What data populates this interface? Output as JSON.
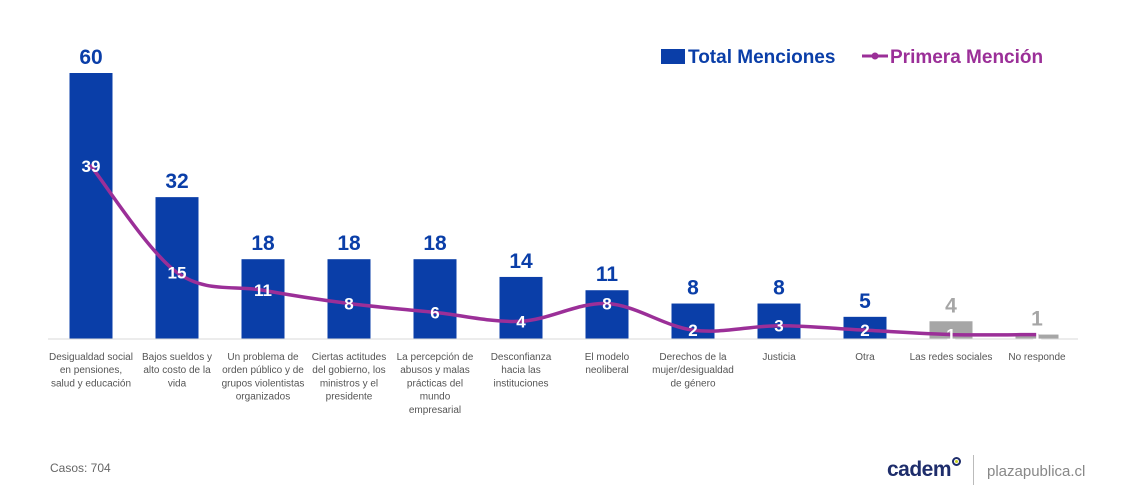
{
  "chart_data": {
    "type": "bar",
    "categories": [
      [
        "Desigualdad social",
        "en pensiones,",
        "salud y educación"
      ],
      [
        "Bajos sueldos y",
        "alto costo de la",
        "vida"
      ],
      [
        "Un problema de",
        "orden público y de",
        "grupos violentistas",
        "organizados"
      ],
      [
        "Ciertas actitudes",
        "del gobierno, los",
        "ministros y el",
        "presidente"
      ],
      [
        "La percepción de",
        "abusos y malas",
        "prácticas del",
        "mundo",
        "empresarial"
      ],
      [
        "Desconfianza",
        "hacia las",
        "instituciones"
      ],
      [
        "El modelo",
        "neoliberal"
      ],
      [
        "Derechos de la",
        "mujer/desigualdad",
        "de género"
      ],
      [
        "Justicia"
      ],
      [
        "Otra"
      ],
      [
        "Las redes sociales"
      ],
      [
        "No responde"
      ]
    ],
    "series": [
      {
        "name": "Total Menciones",
        "type": "bar",
        "values": [
          60,
          32,
          18,
          18,
          18,
          14,
          11,
          8,
          8,
          5,
          4,
          1
        ],
        "colors": [
          "#0a3ea8",
          "#0a3ea8",
          "#0a3ea8",
          "#0a3ea8",
          "#0a3ea8",
          "#0a3ea8",
          "#0a3ea8",
          "#0a3ea8",
          "#0a3ea8",
          "#0a3ea8",
          "#a6a6a6",
          "#a6a6a6"
        ]
      },
      {
        "name": "Primera Mención",
        "type": "line",
        "values": [
          39,
          15,
          11,
          8,
          6,
          4,
          8,
          2,
          3,
          2,
          1,
          1
        ]
      }
    ],
    "ylim": [
      0,
      60
    ],
    "grid": false,
    "legend": "top-right",
    "colors": {
      "bar": "#0a3ea8",
      "bar_muted": "#a6a6a6",
      "line": "#9b2f98",
      "bar_label_muted": "#a6a6a6"
    }
  },
  "footer": {
    "cases": "Casos: 704",
    "brand": "cadem",
    "site": "plazapublica.cl"
  }
}
